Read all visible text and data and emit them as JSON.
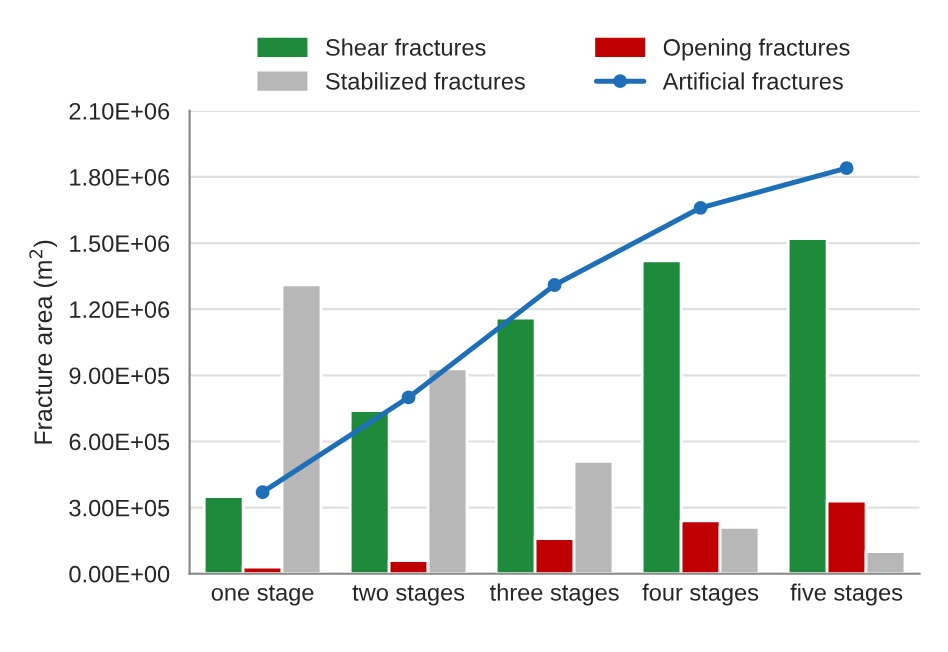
{
  "chart_data": {
    "type": "bar",
    "ylabel": "Fracture area (m$^{2}$)",
    "categories": [
      "one stage",
      "two stages",
      "three stages",
      "four stages",
      "five stages"
    ],
    "series": [
      {
        "name": "Shear fractures",
        "color": "#1e8a3c",
        "values": [
          350000,
          740000,
          1160000,
          1420000,
          1520000
        ]
      },
      {
        "name": "Opening fractures",
        "color": "#c00000",
        "values": [
          30000,
          60000,
          160000,
          240000,
          330000
        ]
      },
      {
        "name": "Stabilized fractures",
        "color": "#b7b7b7",
        "values": [
          1310000,
          930000,
          510000,
          210000,
          100000
        ]
      },
      {
        "name": "Artificial fractures",
        "type": "line",
        "color": "#1f6fb8",
        "marker": "circle",
        "values": [
          370000,
          800000,
          1310000,
          1660000,
          1840000
        ]
      }
    ],
    "ylim": [
      0,
      2100000
    ],
    "yticks": [
      {
        "value": 0,
        "label": "0.00E+00"
      },
      {
        "value": 300000,
        "label": "3.00E+05"
      },
      {
        "value": 600000,
        "label": "6.00E+05"
      },
      {
        "value": 900000,
        "label": "9.00E+05"
      },
      {
        "value": 1200000,
        "label": "1.20E+06"
      },
      {
        "value": 1500000,
        "label": "1.50E+06"
      },
      {
        "value": 1800000,
        "label": "1.80E+06"
      },
      {
        "value": 2100000,
        "label": "2.10E+06"
      }
    ],
    "grid": "y",
    "legend": "top"
  }
}
